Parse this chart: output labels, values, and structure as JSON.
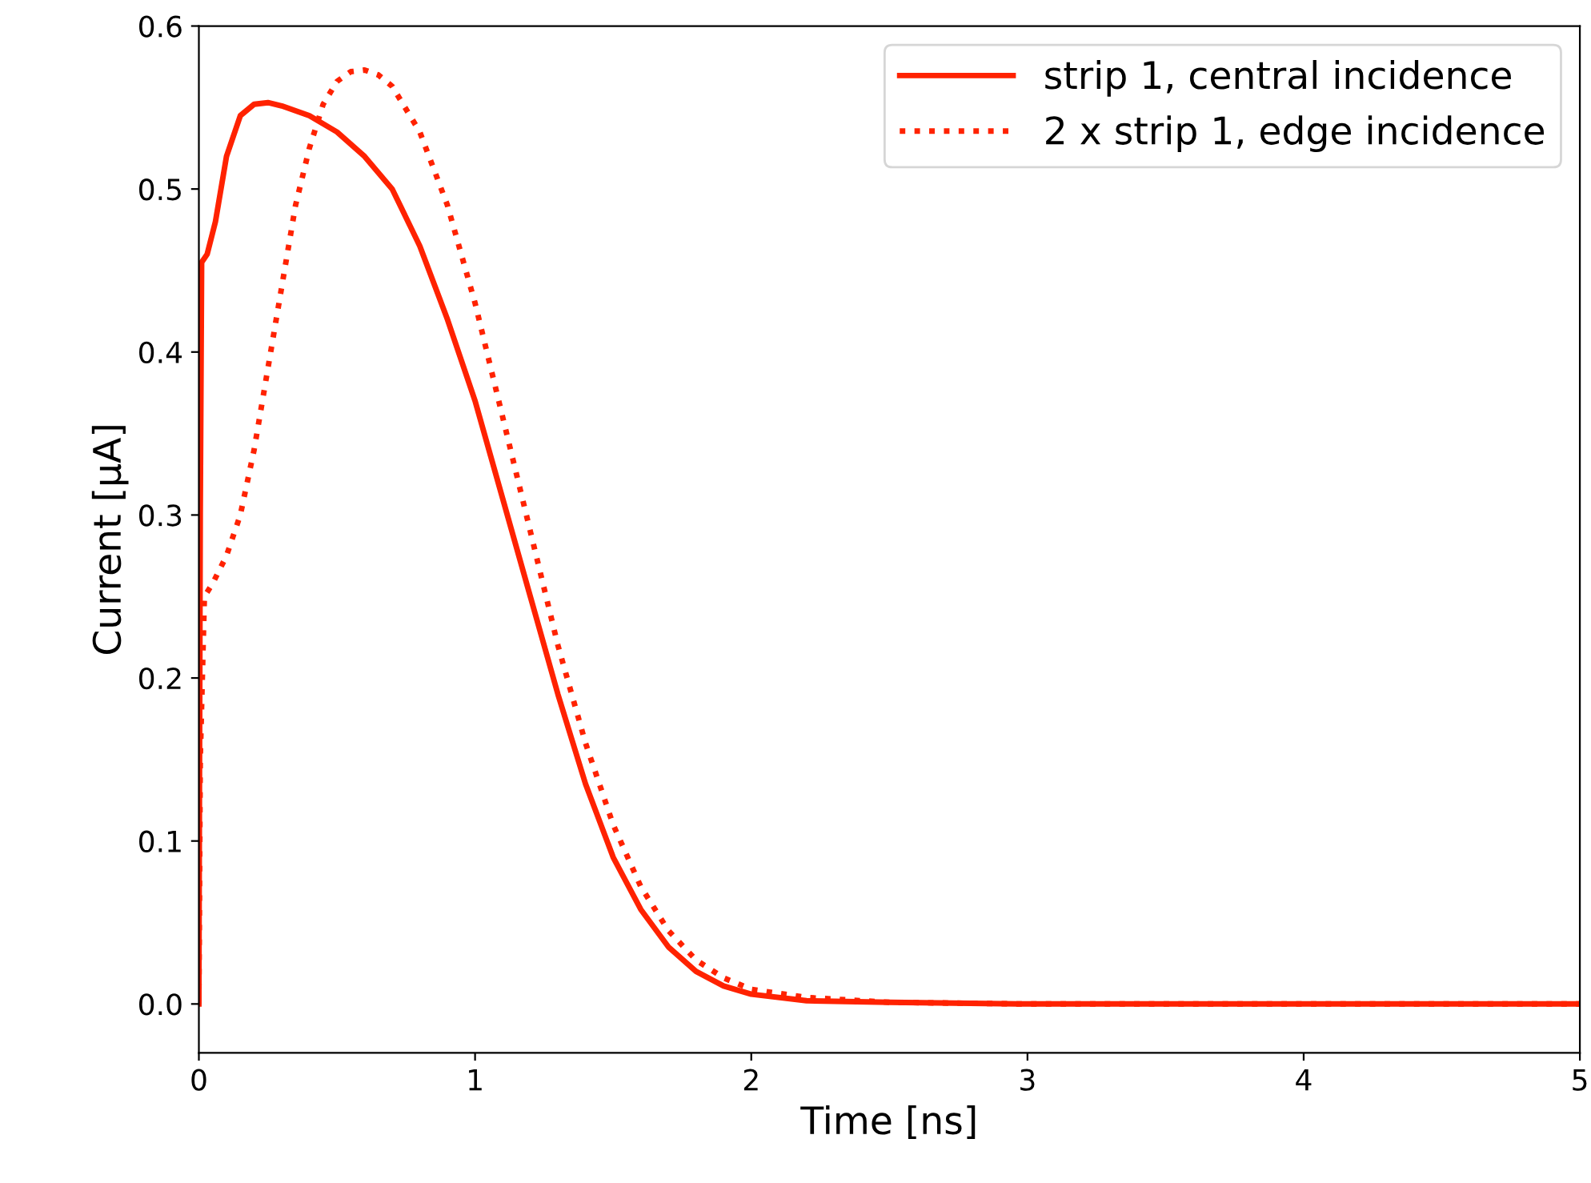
{
  "chart_data": {
    "type": "line",
    "xlabel": "Time [ns]",
    "ylabel": "Current [μA]",
    "xlim": [
      0,
      5
    ],
    "ylim": [
      -0.03,
      0.6
    ],
    "xticks": [
      0,
      1,
      2,
      3,
      4,
      5
    ],
    "yticks": [
      {
        "value": 0,
        "label": "0.0"
      },
      0.1,
      0.2,
      0.3,
      0.4,
      0.5,
      0.6
    ],
    "grid": false,
    "legend": "top right",
    "series": [
      {
        "name": "strip 1, central incidence",
        "color": "#ff2200",
        "line_style": "solid",
        "x": [
          0,
          0.005,
          0.01,
          0.03,
          0.06,
          0.1,
          0.15,
          0.2,
          0.25,
          0.3,
          0.4,
          0.5,
          0.6,
          0.7,
          0.8,
          0.9,
          1.0,
          1.1,
          1.2,
          1.3,
          1.4,
          1.5,
          1.6,
          1.7,
          1.8,
          1.9,
          2.0,
          2.2,
          2.5,
          3.0,
          4.0,
          5.0
        ],
        "values": [
          0,
          0.3,
          0.455,
          0.46,
          0.48,
          0.52,
          0.545,
          0.552,
          0.553,
          0.551,
          0.545,
          0.535,
          0.52,
          0.5,
          0.465,
          0.42,
          0.37,
          0.31,
          0.25,
          0.19,
          0.135,
          0.09,
          0.058,
          0.035,
          0.02,
          0.011,
          0.006,
          0.002,
          0.001,
          0,
          0,
          0
        ]
      },
      {
        "name": "2 x strip 1, edge incidence",
        "color": "#ff2200",
        "line_style": "dotted",
        "x": [
          0,
          0.005,
          0.02,
          0.05,
          0.1,
          0.15,
          0.2,
          0.25,
          0.3,
          0.35,
          0.4,
          0.45,
          0.5,
          0.55,
          0.6,
          0.65,
          0.7,
          0.8,
          0.9,
          1.0,
          1.1,
          1.2,
          1.3,
          1.4,
          1.5,
          1.6,
          1.7,
          1.8,
          1.9,
          2.0,
          2.2,
          2.5,
          3.0,
          4.0,
          5.0
        ],
        "values": [
          0,
          0.15,
          0.25,
          0.258,
          0.275,
          0.3,
          0.34,
          0.39,
          0.44,
          0.49,
          0.525,
          0.552,
          0.566,
          0.572,
          0.573,
          0.57,
          0.563,
          0.535,
          0.49,
          0.43,
          0.36,
          0.29,
          0.22,
          0.16,
          0.11,
          0.072,
          0.045,
          0.027,
          0.016,
          0.009,
          0.004,
          0.001,
          0,
          0,
          0
        ]
      }
    ]
  }
}
